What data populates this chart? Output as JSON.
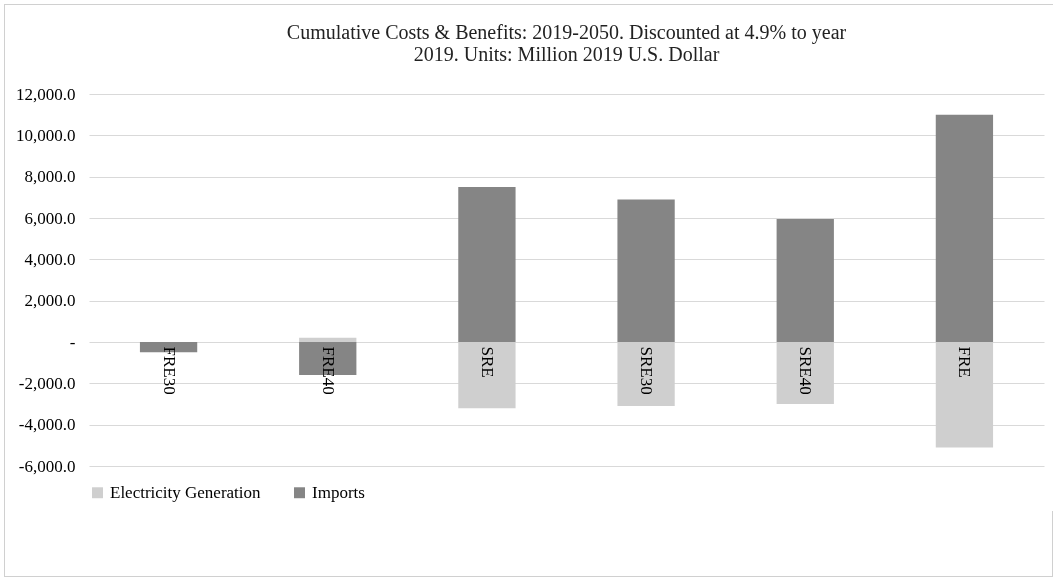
{
  "chart_data": {
    "type": "bar",
    "stacked": true,
    "title": [
      "Cumulative Costs & Benefits: 2019-2050. Discounted at 4.9% to year",
      "2019.  Units: Million 2019 U.S. Dollar"
    ],
    "categories": [
      "FRE30",
      "FRE40",
      "SRE",
      "SRE30",
      "SRE40",
      "FRE"
    ],
    "series": [
      {
        "name": "Electricity Generation",
        "color": "#cfcfcf",
        "values": [
          0,
          200,
          -3200,
          -3100,
          -3000,
          -5100
        ]
      },
      {
        "name": "Imports",
        "color": "#858585",
        "values": [
          -500,
          -1600,
          7500,
          6900,
          5950,
          11000
        ]
      }
    ],
    "ylim": [
      -6000,
      12000
    ],
    "yticks": [
      {
        "value": -6000,
        "label": "-6,000.0"
      },
      {
        "value": -4000,
        "label": "-4,000.0"
      },
      {
        "value": -2000,
        "label": "-2,000.0"
      },
      {
        "value": 0,
        "label": "-"
      },
      {
        "value": 2000,
        "label": "2,000.0"
      },
      {
        "value": 4000,
        "label": "4,000.0"
      },
      {
        "value": 6000,
        "label": "6,000.0"
      },
      {
        "value": 8000,
        "label": "8,000.0"
      },
      {
        "value": 10000,
        "label": "10,000.0"
      },
      {
        "value": 12000,
        "label": "12,000.0"
      }
    ],
    "grid": "y",
    "legend": "bottom"
  }
}
